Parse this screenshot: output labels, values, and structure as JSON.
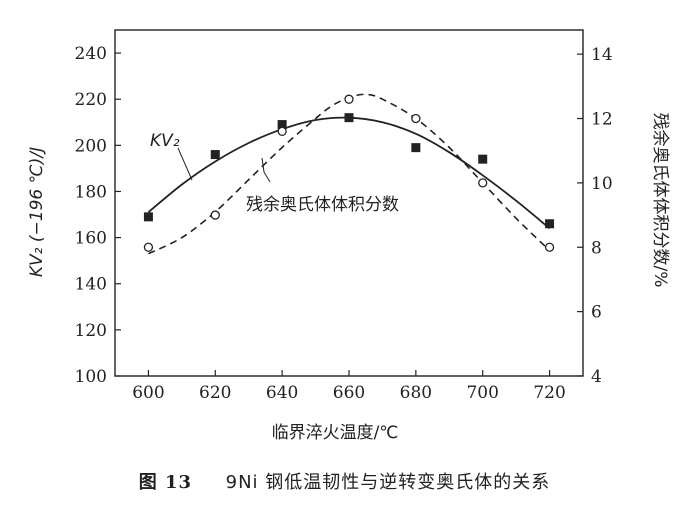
{
  "chart_data": {
    "type": "line",
    "title": "",
    "xlabel": "临界淬火温度/℃",
    "ylabel_left": "KV₂ (−196 ℃)/J",
    "ylabel_right": "残余奥氏体体积分数/%",
    "x_ticks": [
      600,
      620,
      640,
      660,
      680,
      700,
      720
    ],
    "y_left_ticks": [
      100,
      120,
      140,
      160,
      180,
      200,
      220,
      240
    ],
    "y_right_ticks": [
      4,
      6,
      8,
      10,
      12,
      14
    ],
    "xlim": [
      590,
      730
    ],
    "ylim_left": [
      100,
      250
    ],
    "ylim_right": [
      4,
      14.75
    ],
    "grid": false,
    "series": [
      {
        "name": "KV₂",
        "axis": "left",
        "marker": "filled-square",
        "line_style": "solid",
        "x": [
          600,
          620,
          640,
          660,
          680,
          700,
          720
        ],
        "y": [
          169,
          196,
          209,
          212,
          199,
          194,
          166
        ],
        "fit": {
          "x": [
            600,
            610,
            620,
            630,
            640,
            650,
            660,
            670,
            680,
            690,
            700,
            710,
            720
          ],
          "y": [
            171,
            183,
            193,
            201,
            207,
            211,
            212,
            210,
            205,
            197,
            187,
            176,
            164
          ]
        }
      },
      {
        "name": "残余奥氏体体积分数",
        "axis": "right",
        "marker": "open-circle",
        "line_style": "dashed",
        "x": [
          600,
          620,
          640,
          660,
          680,
          700,
          720
        ],
        "y": [
          8.0,
          9.0,
          11.6,
          12.6,
          12.0,
          10.0,
          8.0
        ],
        "fit": {
          "x": [
            600,
            610,
            620,
            630,
            640,
            650,
            655,
            660,
            665,
            670,
            680,
            690,
            700,
            710,
            720
          ],
          "y": [
            7.8,
            8.3,
            9.1,
            10.1,
            11.1,
            12.0,
            12.4,
            12.65,
            12.75,
            12.6,
            12.0,
            11.1,
            10.0,
            8.9,
            7.9
          ]
        }
      }
    ],
    "annotations": {
      "kv2": "KV₂",
      "ra": "残余奥氏体体积分数"
    }
  },
  "caption": {
    "number": "图 13",
    "title": "9Ni 钢低温韧性与逆转变奥氏体的关系"
  }
}
